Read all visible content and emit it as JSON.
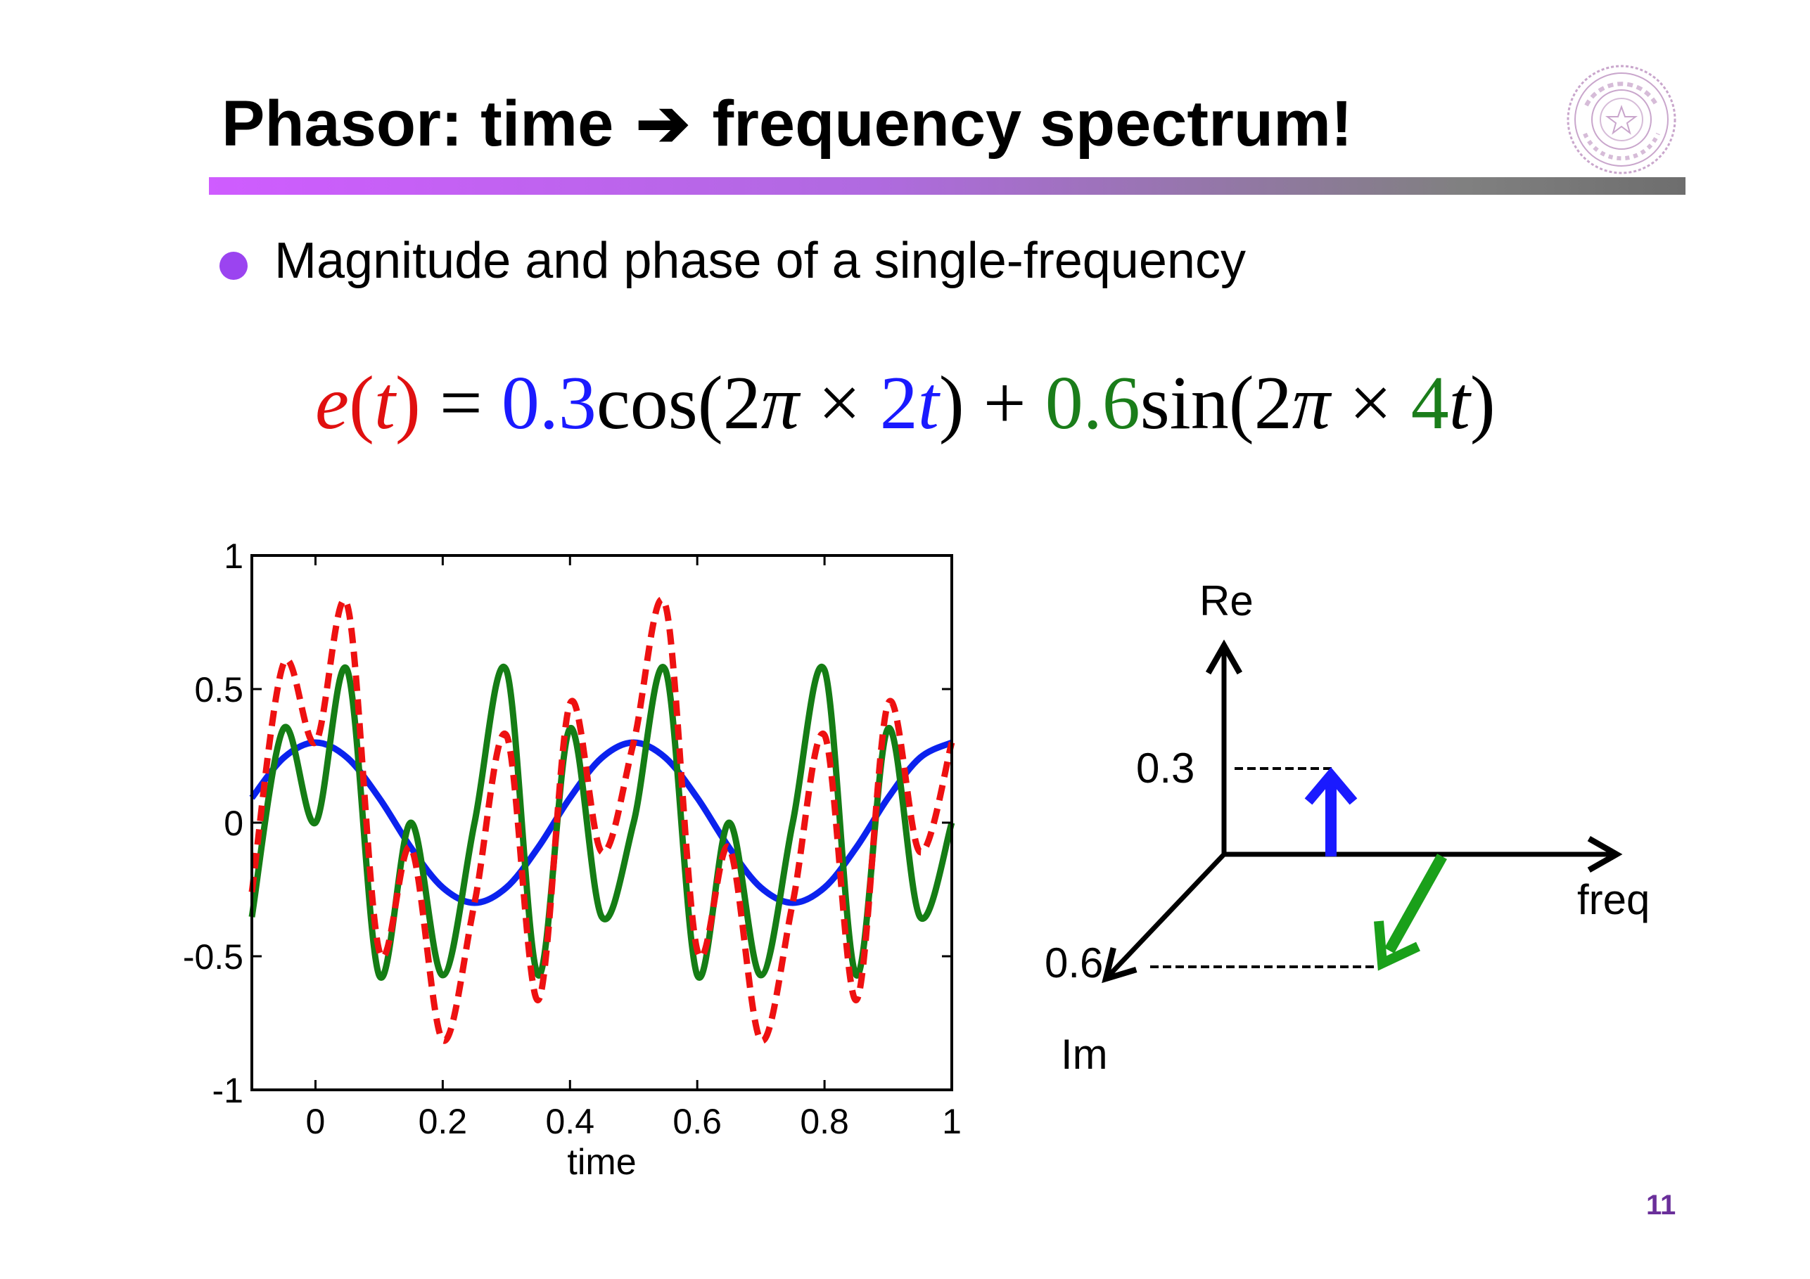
{
  "slide": {
    "title_before": "Phasor: time",
    "title_arrow": "➔",
    "title_after": "frequency spectrum!",
    "bullet": "Magnitude and phase of a single-frequency",
    "page_number": "11",
    "bar_colors": [
      "#cf5cff",
      "#6e6e6e"
    ],
    "bullet_color": "#9b44f0"
  },
  "equation": {
    "lhs_e": "e",
    "lhs_t": "t",
    "equals": "=",
    "a1": "0.3",
    "fn1": "cos",
    "two_pi_1": "2",
    "pi": "π",
    "times": "×",
    "f1": "2",
    "t": "t",
    "plus": "+",
    "a2": "0.6",
    "fn2": "sin",
    "f2": "4",
    "colors": {
      "lhs": "#e01010",
      "cos_term": "#1a1aff",
      "sin_term": "#1a7d1a"
    }
  },
  "chart_data": [
    {
      "type": "line",
      "xlabel": "time",
      "ylabel": "",
      "xlim": [
        -0.1,
        1
      ],
      "ylim": [
        -1,
        1
      ],
      "x_ticks": [
        "0",
        "0.2",
        "0.4",
        "0.6",
        "0.8",
        "1"
      ],
      "x_tick_values": [
        0,
        0.2,
        0.4,
        0.6,
        0.8,
        1
      ],
      "y_ticks": [
        "1",
        "0.5",
        "0",
        "-0.5",
        "-1"
      ],
      "y_tick_values": [
        1,
        0.5,
        0,
        -0.5,
        -1
      ],
      "grid": false,
      "sample_x": [
        -0.1,
        -0.05,
        0,
        0.05,
        0.1,
        0.15,
        0.2,
        0.25,
        0.3,
        0.35,
        0.4,
        0.45,
        0.5,
        0.55,
        0.6,
        0.65,
        0.7,
        0.75,
        0.8,
        0.85,
        0.9,
        0.95,
        1.0
      ],
      "series": [
        {
          "color": "#0b22ee",
          "dash": "solid",
          "values": [
            0.093,
            0.243,
            0.3,
            0.243,
            0.093,
            -0.093,
            -0.243,
            -0.3,
            -0.243,
            -0.093,
            0.093,
            0.243,
            0.3,
            0.243,
            0.093,
            -0.093,
            -0.243,
            -0.3,
            -0.243,
            -0.093,
            0.093,
            0.243,
            0.3
          ]
        },
        {
          "color": "#157d15",
          "dash": "solid",
          "values": [
            -0.353,
            0.353,
            0,
            0.571,
            -0.571,
            0,
            -0.571,
            0,
            0.571,
            -0.571,
            0.353,
            -0.353,
            0,
            0.571,
            -0.571,
            0,
            -0.571,
            0,
            0.571,
            -0.571,
            0.353,
            -0.353,
            0
          ]
        },
        {
          "color": "#ee1111",
          "dash": "dashed",
          "values": [
            -0.26,
            0.596,
            0.3,
            0.814,
            -0.478,
            -0.093,
            -0.814,
            -0.3,
            0.328,
            -0.664,
            0.446,
            -0.11,
            0.3,
            0.814,
            -0.478,
            -0.093,
            -0.814,
            -0.3,
            0.328,
            -0.664,
            0.446,
            -0.11,
            0.3
          ]
        }
      ]
    },
    {
      "type": "phasor-diagram",
      "axis_labels": {
        "re": "Re",
        "im": "Im",
        "freq": "freq"
      },
      "tick_labels": {
        "re_value": "0.3",
        "im_value": "0.6"
      },
      "phasors": [
        {
          "frequency": 2,
          "component": "Re",
          "magnitude": 0.3,
          "color": "#1a1aff"
        },
        {
          "frequency": 4,
          "component": "Im",
          "magnitude": 0.6,
          "color": "#1aa01a"
        }
      ]
    }
  ]
}
